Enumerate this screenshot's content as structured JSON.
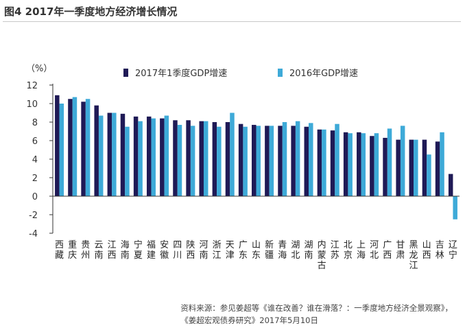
{
  "title": "图4  2017年一季度地方经济增长情况",
  "unit_label": "（%）",
  "colors": {
    "s1": "#1f1a56",
    "s2": "#3eaad8",
    "axis": "#333333"
  },
  "source": {
    "line1": "资料来源：参见姜超等《谁在改善？谁在滑落？：一季度地方经济全景观察》，",
    "line2": "《姜超宏观债券研究》2017年5月10日"
  },
  "chart_data": {
    "type": "bar",
    "title": "图4  2017年一季度地方经济增长情况",
    "ylabel": "（%）",
    "ylim": [
      -4,
      12
    ],
    "yticks": [
      "12",
      "10",
      "8",
      "6",
      "4",
      "2",
      "0",
      "-2",
      "-4"
    ],
    "legend_position": "top",
    "categories": [
      "西藏",
      "重庆",
      "贵州",
      "云南",
      "江西",
      "海南",
      "宁夏",
      "福建",
      "安徽",
      "四川",
      "陕西",
      "河南",
      "浙江",
      "天津",
      "广东",
      "山东",
      "新疆",
      "青海",
      "湖北",
      "湖南",
      "内蒙古",
      "江苏",
      "北京",
      "上海",
      "河北",
      "广西",
      "甘肃",
      "黑龙江",
      "山西",
      "吉林",
      "辽宁"
    ],
    "series": [
      {
        "name": "2017年1季度GDP增速",
        "values": [
          10.9,
          10.5,
          10.2,
          9.8,
          9.0,
          8.9,
          8.6,
          8.6,
          8.4,
          8.2,
          8.2,
          8.1,
          8.0,
          8.0,
          7.8,
          7.7,
          7.6,
          7.6,
          7.6,
          7.5,
          7.2,
          7.1,
          6.9,
          6.9,
          6.5,
          6.3,
          6.1,
          6.1,
          6.1,
          5.9,
          2.4
        ]
      },
      {
        "name": "2016年GDP增速",
        "values": [
          10.0,
          10.7,
          10.5,
          8.7,
          9.0,
          7.5,
          8.1,
          8.4,
          8.7,
          7.7,
          7.6,
          8.1,
          7.5,
          9.0,
          7.5,
          7.6,
          7.6,
          8.0,
          8.1,
          7.9,
          7.2,
          7.8,
          6.8,
          6.8,
          6.8,
          7.3,
          7.6,
          6.1,
          4.5,
          6.9,
          -2.5
        ]
      }
    ]
  }
}
